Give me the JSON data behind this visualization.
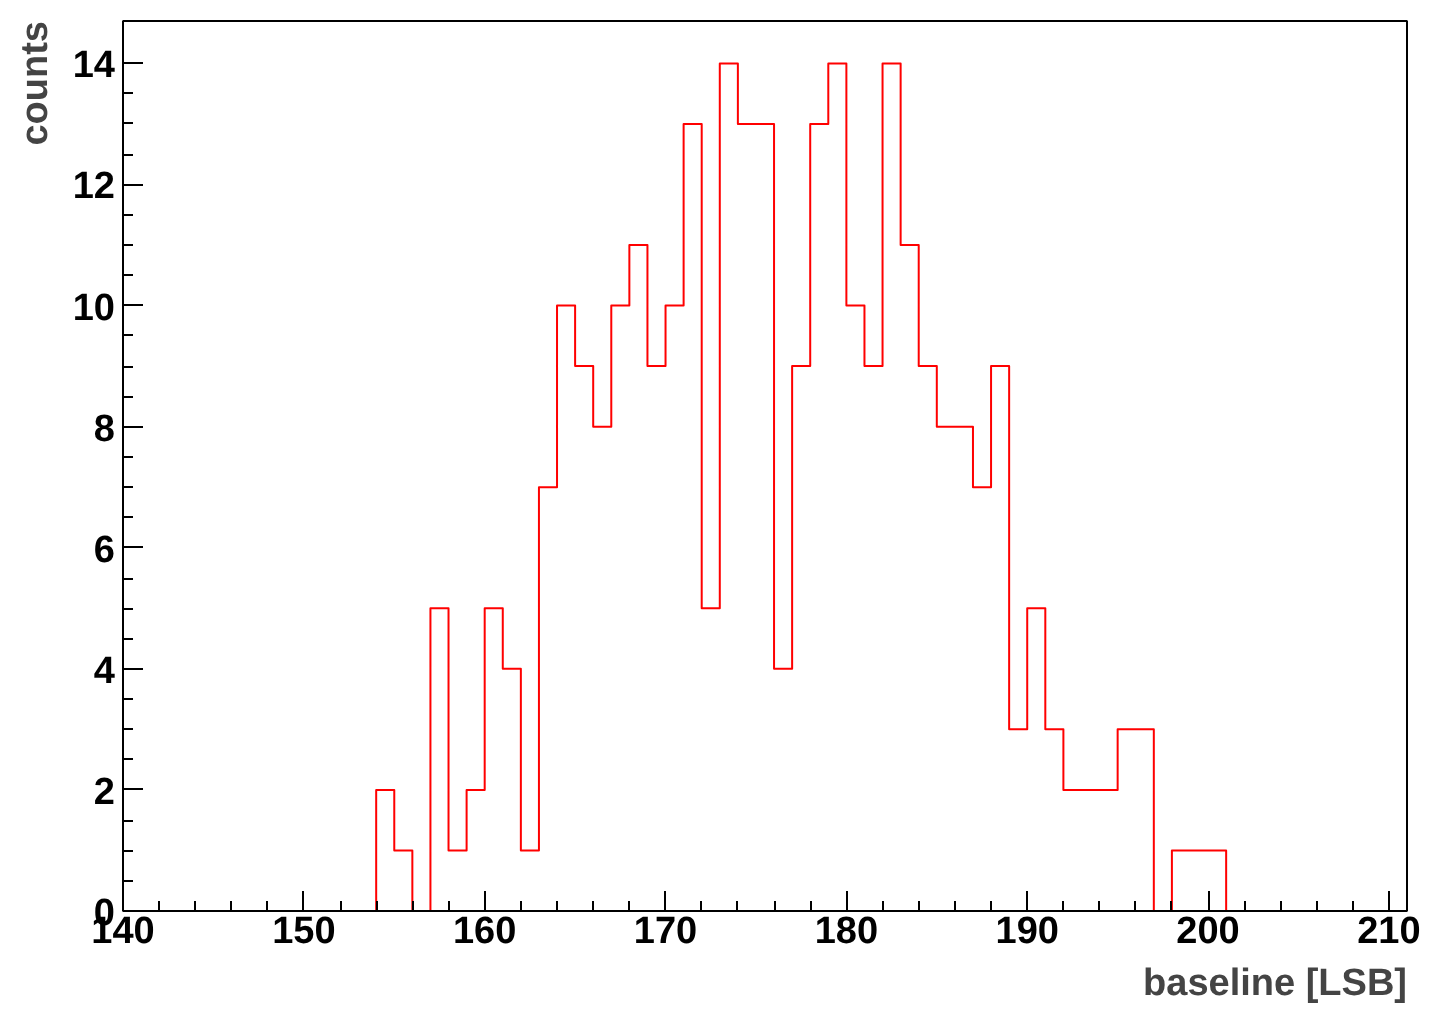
{
  "chart_data": {
    "type": "histogram",
    "xlabel": "baseline [LSB]",
    "ylabel": "counts",
    "color": "#ff0000",
    "bins": [
      140,
      141,
      142,
      143,
      144,
      145,
      146,
      147,
      148,
      149,
      150,
      151,
      152,
      153,
      154,
      155,
      156,
      157,
      158,
      159,
      160,
      161,
      162,
      163,
      164,
      165,
      166,
      167,
      168,
      169,
      170,
      171,
      172,
      173,
      174,
      175,
      176,
      177,
      178,
      179,
      180,
      181,
      182,
      183,
      184,
      185,
      186,
      187,
      188,
      189,
      190,
      191,
      192,
      193,
      194,
      195,
      196,
      197,
      198,
      199,
      200,
      201,
      202,
      203,
      204,
      205,
      206,
      207,
      208,
      209,
      210,
      211
    ],
    "values": [
      0,
      0,
      0,
      0,
      0,
      0,
      0,
      0,
      0,
      0,
      0,
      0,
      0,
      0,
      2,
      1,
      0,
      5,
      1,
      2,
      5,
      4,
      1,
      7,
      10,
      9,
      8,
      10,
      11,
      9,
      10,
      13,
      5,
      14,
      13,
      13,
      4,
      9,
      13,
      14,
      10,
      9,
      14,
      11,
      9,
      8,
      8,
      7,
      9,
      3,
      5,
      3,
      2,
      2,
      2,
      3,
      3,
      0,
      1,
      1,
      1,
      0,
      0,
      0,
      0,
      0,
      0,
      0,
      0,
      0,
      0
    ],
    "xlim": [
      140,
      211
    ],
    "ylim": [
      0,
      14.7
    ],
    "xticks": [
      140,
      150,
      160,
      170,
      180,
      190,
      200,
      210
    ],
    "yticks": [
      0,
      2,
      4,
      6,
      8,
      10,
      12,
      14
    ],
    "grid": false
  }
}
